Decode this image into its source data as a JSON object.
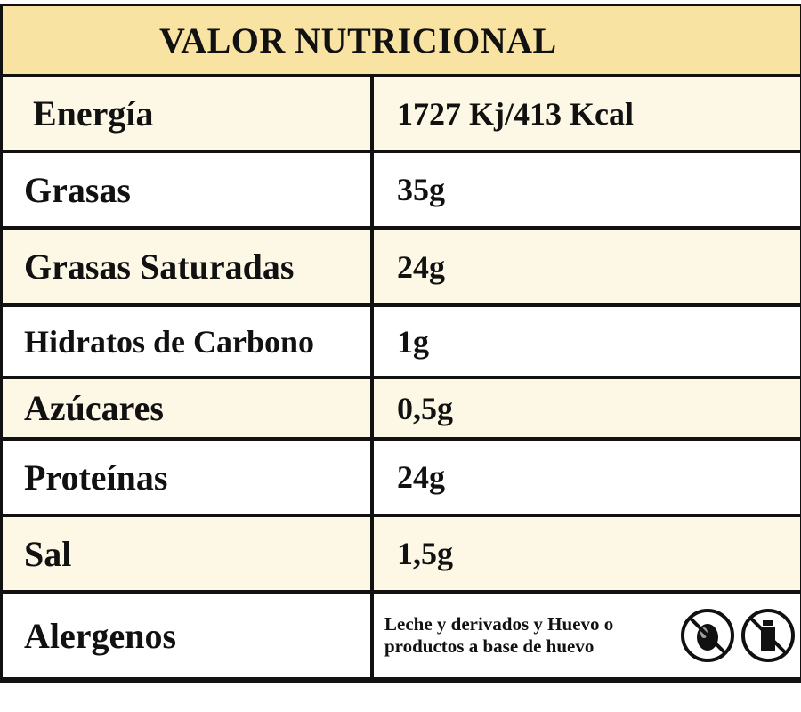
{
  "header": {
    "title": "VALOR NUTRICIONAL"
  },
  "table": {
    "rows": [
      [
        "Energía",
        "1727 Kj/413 Kcal"
      ],
      [
        "Grasas",
        "35g"
      ],
      [
        "Grasas Saturadas",
        "24g"
      ],
      [
        "Hidratos de Carbono",
        "1g"
      ],
      [
        "Azúcares",
        "0,5g"
      ],
      [
        "Proteínas",
        "24g"
      ],
      [
        "Sal",
        "1,5g"
      ],
      [
        "Alergenos",
        "Leche y derivados y Huevo o productos a base de huevo"
      ]
    ]
  }
}
